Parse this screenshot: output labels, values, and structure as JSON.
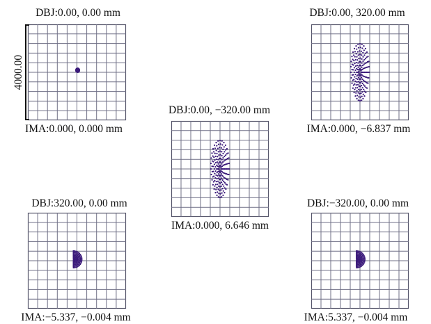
{
  "colors": {
    "grid": "#6f6f86",
    "spot": "#3b1a7a",
    "frame": "#55556a"
  },
  "scale_label": "4000.00",
  "panels": [
    {
      "id": "p1",
      "top": "DBJ:0.00, 0.00 mm",
      "bottom": "IMA:0.000, 0.000 mm",
      "spot": "dot"
    },
    {
      "id": "p2",
      "top": "DBJ:0.00, 320.00 mm",
      "bottom": "IMA:0.000, −6.837 mm",
      "spot": "ellipse"
    },
    {
      "id": "p3",
      "top": "DBJ:0.00, −320.00 mm",
      "bottom": "IMA:0.000, 6.646 mm",
      "spot": "ellipse"
    },
    {
      "id": "p4",
      "top": "DBJ:320.00, 0.00 mm",
      "bottom": "IMA:−5.337, −0.004 mm",
      "spot": "fan-right"
    },
    {
      "id": "p5",
      "top": "DBJ:−320.00, 0.00 mm",
      "bottom": "IMA:5.337, −0.004 mm",
      "spot": "fan-right"
    }
  ]
}
